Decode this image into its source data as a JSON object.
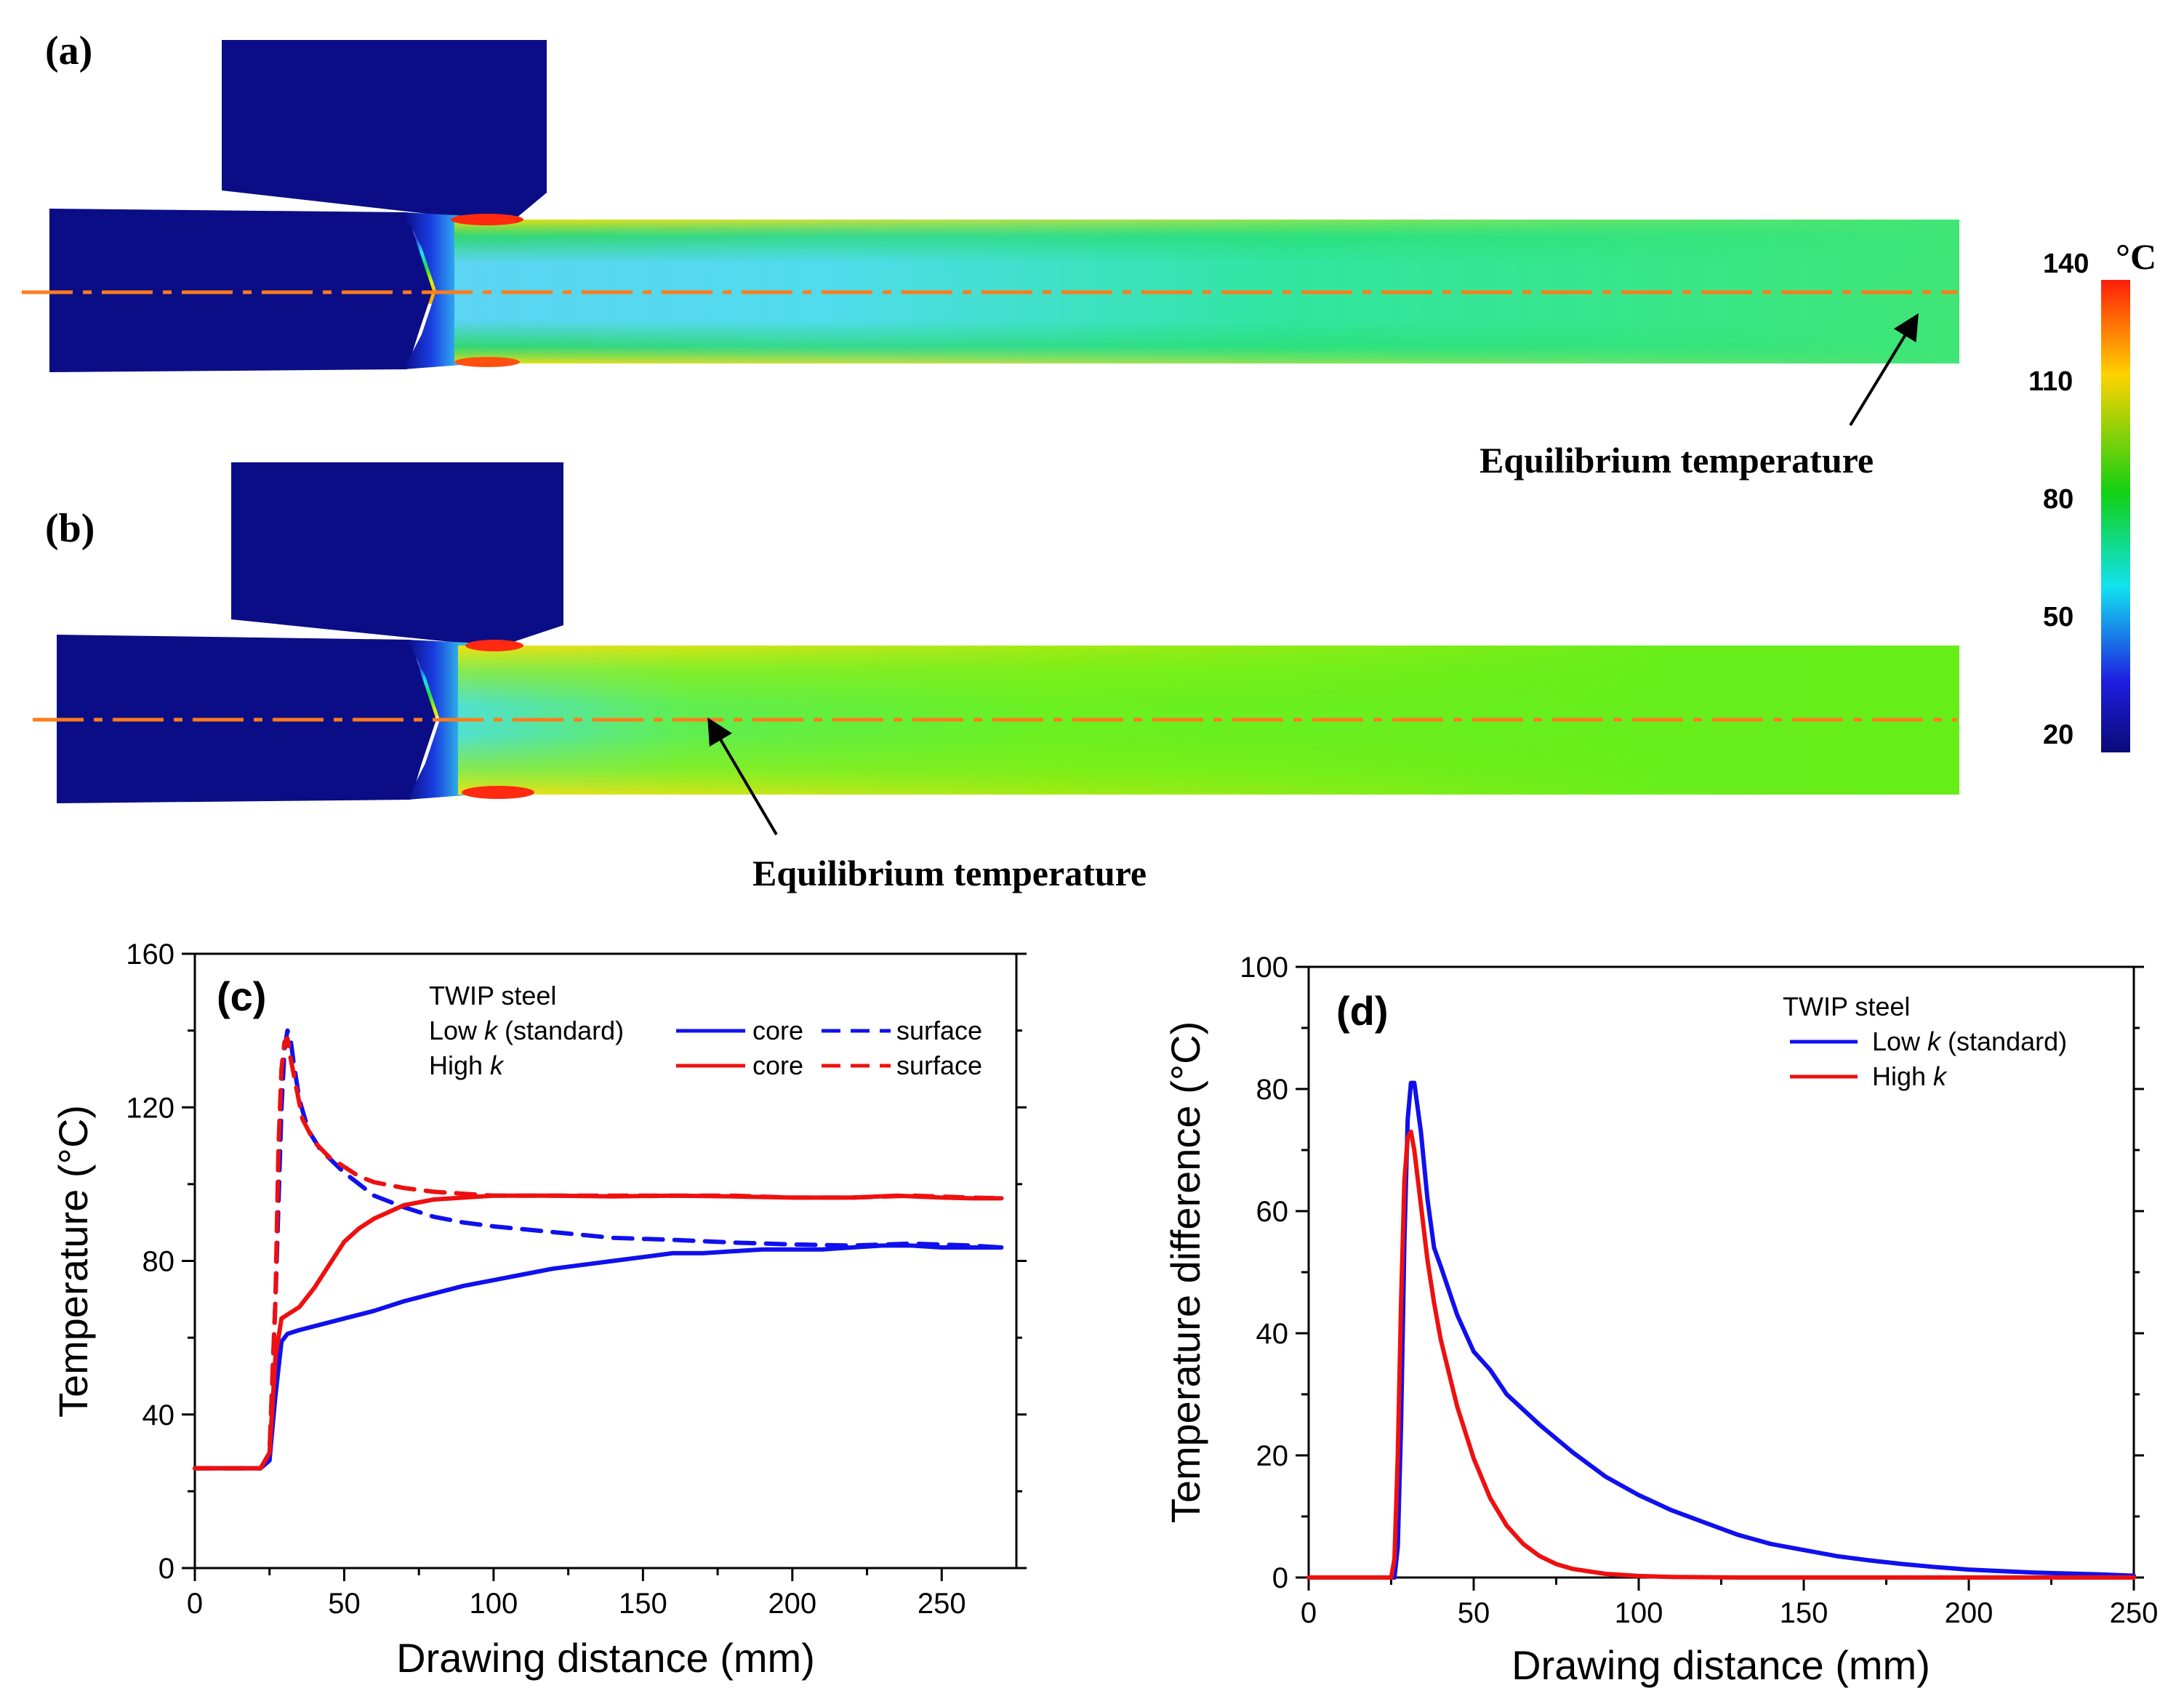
{
  "panel_labels": {
    "a": "(a)",
    "b": "(b)",
    "c": "(c)",
    "d": "(d)"
  },
  "equilibrium_label": "Equilibrium temperature",
  "colorbar": {
    "unit": "°C",
    "ticks": [
      "140",
      "110",
      "80",
      "50",
      "20"
    ],
    "tick_values": [
      140,
      110,
      80,
      50,
      20
    ],
    "range": [
      20,
      140
    ],
    "colors": [
      "#ff1e0a",
      "#ffd200",
      "#12d012",
      "#12e2f0",
      "#1e1ee0",
      "#0a0a78"
    ]
  },
  "simulation_colors": {
    "die": "#0b0d86",
    "unheated_wire": "#0b0d86",
    "hot_spot": "#ff2a10",
    "axis_line": "#ff7c1c"
  },
  "chart_data": [
    {
      "id": "c",
      "type": "line",
      "title": "TWIP steel",
      "xlabel": "Drawing distance (mm)",
      "ylabel": "Temperature (°C)",
      "xlim": [
        0,
        275
      ],
      "ylim": [
        0,
        160
      ],
      "xticks": [
        0,
        50,
        100,
        150,
        200,
        250
      ],
      "yticks": [
        0,
        40,
        80,
        120,
        160
      ],
      "legend": {
        "position": "top-right",
        "rows": [
          {
            "label": "Low ",
            "italic": "k",
            "suffix": " (standard)",
            "color": "#1010ee",
            "core": "core",
            "surface": "surface"
          },
          {
            "label": "High ",
            "italic": "k",
            "suffix": "",
            "color": "#ee1010",
            "core": "core",
            "surface": "surface"
          }
        ]
      },
      "series": [
        {
          "name": "Low k core",
          "color": "#1010ee",
          "dash": false,
          "x": [
            0,
            22,
            25,
            27,
            29,
            31,
            35,
            40,
            50,
            60,
            70,
            80,
            90,
            100,
            110,
            120,
            130,
            140,
            150,
            160,
            170,
            180,
            190,
            200,
            210,
            220,
            230,
            240,
            250,
            260,
            270
          ],
          "y": [
            26,
            26,
            28,
            45,
            59,
            61,
            62,
            63,
            65,
            67,
            69.5,
            71.5,
            73.5,
            75,
            76.5,
            78,
            79,
            80,
            81,
            82,
            82,
            82.5,
            83,
            83,
            83,
            83.5,
            84,
            84,
            83.5,
            83.5,
            83.5
          ]
        },
        {
          "name": "Low k surface",
          "color": "#1010ee",
          "dash": true,
          "x": [
            0,
            22,
            25,
            27,
            29,
            30,
            31,
            32,
            33,
            35,
            38,
            42,
            46,
            50,
            55,
            60,
            70,
            80,
            90,
            100,
            120,
            140,
            160,
            180,
            200,
            220,
            240,
            260,
            270
          ],
          "y": [
            26,
            26,
            30,
            70,
            120,
            135,
            140,
            138,
            132,
            122,
            114,
            109,
            106,
            103,
            100,
            97,
            94,
            91.5,
            90,
            89,
            87.5,
            86,
            85.5,
            84.8,
            84.3,
            84,
            84.5,
            84,
            83.5
          ]
        },
        {
          "name": "High k core",
          "color": "#ee1010",
          "dash": false,
          "x": [
            0,
            22,
            25,
            27,
            29,
            31,
            35,
            40,
            45,
            50,
            55,
            60,
            70,
            80,
            90,
            100,
            120,
            140,
            160,
            180,
            200,
            220,
            235,
            250,
            260,
            270
          ],
          "y": [
            26,
            26,
            30,
            55,
            65,
            66,
            68,
            73,
            79,
            85,
            88.5,
            91,
            94.5,
            96,
            96.5,
            97,
            97,
            96.8,
            97,
            96.8,
            96.5,
            96.5,
            97,
            96.5,
            96.3,
            96.3
          ]
        },
        {
          "name": "High k surface",
          "color": "#ee1010",
          "dash": true,
          "x": [
            0,
            22,
            25,
            27,
            28,
            29,
            30,
            31,
            32,
            34,
            36,
            40,
            45,
            50,
            55,
            60,
            70,
            80,
            90,
            100,
            120,
            140,
            160,
            180,
            200,
            220,
            240,
            260,
            270
          ],
          "y": [
            26,
            26,
            30,
            70,
            110,
            130,
            137,
            138,
            133,
            125,
            117,
            111,
            107,
            104.5,
            102,
            100.5,
            99,
            98,
            97.5,
            97,
            97,
            97,
            97,
            97,
            96.5,
            96.5,
            97,
            96.5,
            96.3
          ]
        }
      ]
    },
    {
      "id": "d",
      "type": "line",
      "title": "TWIP steel",
      "xlabel": "Drawing distance (mm)",
      "ylabel": "Temperature difference (°C)",
      "xlim": [
        0,
        250
      ],
      "ylim": [
        0,
        100
      ],
      "xticks": [
        0,
        50,
        100,
        150,
        200,
        250
      ],
      "yticks": [
        0,
        20,
        40,
        60,
        80,
        100
      ],
      "legend": {
        "position": "top-right",
        "rows": [
          {
            "label": "Low ",
            "italic": "k",
            "suffix": " (standard)",
            "color": "#1010ee"
          },
          {
            "label": "High ",
            "italic": "k",
            "suffix": "",
            "color": "#ee1010"
          }
        ]
      },
      "series": [
        {
          "name": "Low k (standard)",
          "color": "#1010ee",
          "dash": false,
          "x": [
            0,
            26,
            27,
            28,
            29,
            30,
            31,
            32,
            34,
            36,
            38,
            40,
            45,
            50,
            55,
            60,
            70,
            80,
            90,
            100,
            110,
            120,
            130,
            140,
            150,
            160,
            170,
            180,
            190,
            200,
            220,
            240,
            250
          ],
          "y": [
            0,
            0,
            5,
            25,
            55,
            75,
            81,
            81,
            73,
            62,
            54,
            51,
            43,
            37,
            34,
            30,
            25,
            20.5,
            16.5,
            13.5,
            11,
            9,
            7,
            5.5,
            4.5,
            3.5,
            2.8,
            2.2,
            1.7,
            1.3,
            0.8,
            0.5,
            0.3
          ]
        },
        {
          "name": "High k",
          "color": "#ee1010",
          "dash": false,
          "x": [
            0,
            25,
            26,
            27,
            28,
            29,
            30,
            31,
            32,
            34,
            36,
            38,
            40,
            45,
            50,
            55,
            60,
            65,
            70,
            75,
            80,
            90,
            100,
            110,
            120,
            130,
            150,
            200,
            250
          ],
          "y": [
            0,
            0,
            3,
            20,
            45,
            65,
            72,
            73,
            70,
            61,
            52,
            45,
            39,
            28,
            19.5,
            13,
            8.5,
            5.5,
            3.5,
            2.2,
            1.4,
            0.6,
            0.25,
            0.1,
            0.05,
            0,
            0,
            0,
            0
          ]
        }
      ]
    }
  ]
}
